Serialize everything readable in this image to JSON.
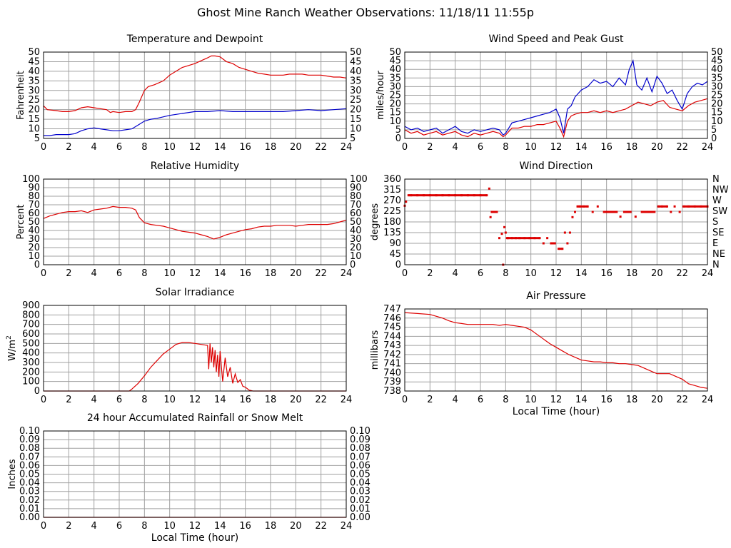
{
  "page": {
    "title": "Ghost Mine Ranch Weather Observations: 11/18/11 11:55p"
  },
  "colors": {
    "red": "#dd0000",
    "blue": "#0000cc",
    "grid": "#a0a0a0",
    "frame": "#000000"
  },
  "chart_data": [
    {
      "id": "temp",
      "type": "line",
      "title": "Temperature and Dewpoint",
      "ylabel": "Fahrenheit",
      "xlabel": "",
      "xlim": [
        0,
        24
      ],
      "ylim": [
        5,
        50
      ],
      "xticks": [
        0,
        2,
        4,
        6,
        8,
        10,
        12,
        14,
        16,
        18,
        20,
        22,
        24
      ],
      "yticks": [
        5,
        10,
        15,
        20,
        25,
        30,
        35,
        40,
        45,
        50
      ],
      "right_axis": true,
      "grid": true,
      "series": [
        {
          "color": "red",
          "style": "line",
          "x": [
            0,
            0.3,
            1,
            1.5,
            2,
            2.5,
            3,
            3.5,
            4,
            4.5,
            5,
            5.3,
            5.5,
            6,
            6.5,
            7,
            7.3,
            7.6,
            8,
            8.3,
            8.8,
            9.5,
            10,
            10.5,
            11,
            11.5,
            12,
            12.5,
            13,
            13.3,
            13.6,
            14,
            14.5,
            15,
            15.5,
            16,
            16.5,
            17,
            17.5,
            18,
            18.5,
            19,
            19.5,
            20,
            20.5,
            21,
            21.5,
            22,
            22.5,
            23,
            23.5,
            24
          ],
          "y": [
            22,
            20,
            19.5,
            19,
            19,
            19.5,
            21,
            21.5,
            21,
            20.5,
            20,
            18.5,
            19,
            18.5,
            19,
            19,
            20,
            24,
            30,
            32,
            33,
            35,
            38,
            40,
            42,
            43,
            44,
            45.5,
            47,
            48,
            48,
            47.5,
            45,
            44,
            42,
            41,
            40,
            39,
            38.5,
            38,
            38,
            38,
            38.5,
            38.5,
            38.5,
            38,
            38,
            38,
            37.5,
            37,
            37,
            36.5
          ]
        },
        {
          "color": "blue",
          "style": "line",
          "x": [
            0,
            0.5,
            1,
            1.5,
            2,
            2.5,
            3,
            3.5,
            4,
            4.5,
            5,
            5.5,
            6,
            6.5,
            7,
            7.5,
            8,
            8.5,
            9,
            10,
            11,
            12,
            13,
            14,
            15,
            16,
            17,
            18,
            19,
            20,
            21,
            22,
            23,
            24
          ],
          "y": [
            6.5,
            6.5,
            7,
            7,
            7,
            7.5,
            9,
            10,
            10.5,
            10,
            9.5,
            9,
            9,
            9.5,
            10,
            12,
            14,
            15,
            15.5,
            17,
            18,
            19,
            19,
            19.5,
            19,
            19,
            19,
            19,
            19,
            19.5,
            20,
            19.5,
            20,
            20.5
          ]
        }
      ]
    },
    {
      "id": "wind",
      "type": "line",
      "title": "Wind Speed and Peak Gust",
      "ylabel": "miles/hour",
      "xlabel": "",
      "xlim": [
        0,
        24
      ],
      "ylim": [
        0,
        50
      ],
      "xticks": [
        0,
        2,
        4,
        6,
        8,
        10,
        12,
        14,
        16,
        18,
        20,
        22,
        24
      ],
      "yticks": [
        0,
        5,
        10,
        15,
        20,
        25,
        30,
        35,
        40,
        45,
        50
      ],
      "right_axis": true,
      "grid": true,
      "series": [
        {
          "color": "blue",
          "style": "line",
          "x": [
            0,
            0.5,
            1,
            1.5,
            2,
            2.5,
            3,
            3.5,
            4,
            4.5,
            5,
            5.5,
            6,
            6.5,
            7,
            7.5,
            7.8,
            8,
            8.5,
            9,
            9.5,
            10,
            10.5,
            11,
            11.5,
            12,
            12.3,
            12.6,
            12.9,
            13.2,
            13.5,
            14,
            14.5,
            15,
            15.5,
            16,
            16.5,
            17,
            17.5,
            17.8,
            18.1,
            18.4,
            18.8,
            19.2,
            19.6,
            20,
            20.4,
            20.8,
            21.2,
            21.6,
            22,
            22.4,
            22.8,
            23.2,
            23.6,
            24
          ],
          "y": [
            7,
            5,
            6,
            4,
            5,
            6,
            3,
            5,
            7,
            4,
            3,
            5,
            4,
            5,
            6,
            5,
            2,
            3,
            9,
            10,
            11,
            12,
            13,
            14,
            15,
            17,
            12,
            3,
            17,
            19,
            24,
            28,
            30,
            34,
            32,
            33,
            30,
            35,
            31,
            40,
            45,
            31,
            28,
            35,
            27,
            36,
            32,
            26,
            28,
            22,
            17,
            26,
            30,
            32,
            31,
            33
          ]
        },
        {
          "color": "red",
          "style": "line",
          "x": [
            0,
            0.5,
            1,
            1.5,
            2,
            2.5,
            3,
            3.5,
            4,
            4.5,
            5,
            5.5,
            6,
            6.5,
            7,
            7.5,
            7.8,
            8,
            8.5,
            9,
            9.5,
            10,
            10.5,
            11,
            11.5,
            12,
            12.3,
            12.6,
            12.9,
            13.2,
            13.5,
            14,
            14.5,
            15,
            15.5,
            16,
            16.5,
            17,
            17.5,
            18,
            18.5,
            19,
            19.5,
            20,
            20.5,
            21,
            21.5,
            22,
            22.5,
            23,
            23.5,
            24
          ],
          "y": [
            5,
            3,
            4,
            2,
            3,
            4,
            2,
            3,
            4,
            2,
            1,
            3,
            2,
            3,
            4,
            3,
            1,
            2,
            6,
            6,
            7,
            7,
            8,
            8,
            9,
            10,
            6,
            1,
            10,
            13,
            14,
            15,
            15,
            16,
            15,
            16,
            15,
            16,
            17,
            19,
            21,
            20,
            19,
            21,
            22,
            18,
            17,
            16,
            19,
            21,
            22,
            23
          ]
        }
      ]
    },
    {
      "id": "humidity",
      "type": "line",
      "title": "Relative Humidity",
      "ylabel": "Percent",
      "xlabel": "",
      "xlim": [
        0,
        24
      ],
      "ylim": [
        0,
        100
      ],
      "xticks": [
        0,
        2,
        4,
        6,
        8,
        10,
        12,
        14,
        16,
        18,
        20,
        22,
        24
      ],
      "yticks": [
        0,
        10,
        20,
        30,
        40,
        50,
        60,
        70,
        80,
        90,
        100
      ],
      "right_axis": true,
      "grid": true,
      "series": [
        {
          "color": "red",
          "style": "line",
          "x": [
            0,
            0.5,
            1,
            1.5,
            2,
            2.5,
            3,
            3.5,
            4,
            4.5,
            5,
            5.5,
            6,
            6.5,
            7,
            7.3,
            7.6,
            8,
            8.5,
            9,
            9.5,
            10,
            10.5,
            11,
            11.5,
            12,
            12.5,
            13,
            13.5,
            14,
            14.5,
            15,
            15.5,
            16,
            16.5,
            17,
            17.5,
            18,
            18.5,
            19,
            19.5,
            20,
            20.5,
            21,
            21.5,
            22,
            22.5,
            23,
            23.5,
            24
          ],
          "y": [
            54,
            57,
            59,
            61,
            62,
            62,
            63,
            61,
            64,
            65,
            66,
            68,
            67,
            67,
            66,
            64,
            55,
            49,
            47,
            46,
            45,
            43,
            41,
            39,
            38,
            37,
            35,
            33,
            30,
            32,
            35,
            37,
            39,
            41,
            42,
            44,
            45,
            45,
            46,
            46,
            46,
            45,
            46,
            47,
            47,
            47,
            47,
            48,
            50,
            52
          ]
        }
      ]
    },
    {
      "id": "direction",
      "type": "scatter",
      "title": "Wind Direction",
      "ylabel": "degrees",
      "xlabel": "",
      "xlim": [
        0,
        24
      ],
      "ylim": [
        0,
        360
      ],
      "xticks": [
        0,
        2,
        4,
        6,
        8,
        10,
        12,
        14,
        16,
        18,
        20,
        22,
        24
      ],
      "yticks": [
        0,
        45,
        90,
        135,
        180,
        225,
        270,
        315,
        360
      ],
      "right_labels": [
        "N",
        "NE",
        "E",
        "SE",
        "S",
        "SW",
        "W",
        "NW",
        "N"
      ],
      "grid": true,
      "series": [
        {
          "color": "red",
          "style": "points",
          "x": [
            0,
            0.1,
            0.3,
            0.5,
            1,
            1.5,
            2,
            2.5,
            3,
            3.5,
            4,
            4.5,
            5,
            5.5,
            6,
            6.5,
            6.7,
            6.8,
            6.9,
            7.1,
            7.3,
            7.5,
            7.7,
            7.8,
            7.9,
            8.0,
            8.1,
            8.2,
            8.5,
            8.8,
            9.1,
            9.5,
            9.9,
            10.3,
            10.7,
            11.0,
            11.3,
            11.6,
            11.9,
            12.2,
            12.5,
            12.7,
            12.9,
            13.1,
            13.3,
            13.5,
            13.7,
            13.9,
            14.2,
            14.5,
            14.9,
            15.3,
            15.8,
            16.3,
            16.8,
            17.1,
            17.4,
            17.9,
            18.3,
            18.8,
            19.3,
            19.8,
            20.1,
            20.4,
            20.8,
            21.1,
            21.4,
            21.8,
            22.1,
            22.5,
            23.0,
            23.5,
            24
          ],
          "y": [
            248,
            265,
            292,
            292,
            292,
            292,
            292,
            292,
            292,
            292,
            292,
            292,
            292,
            292,
            292,
            292,
            320,
            200,
            222,
            222,
            222,
            112,
            130,
            0,
            158,
            135,
            112,
            112,
            112,
            112,
            112,
            112,
            112,
            112,
            112,
            90,
            112,
            90,
            90,
            67,
            67,
            135,
            90,
            135,
            200,
            222,
            245,
            245,
            245,
            245,
            222,
            245,
            222,
            222,
            222,
            202,
            222,
            222,
            202,
            222,
            222,
            222,
            245,
            245,
            245,
            222,
            245,
            222,
            245,
            245,
            245,
            245,
            245
          ]
        }
      ]
    },
    {
      "id": "solar",
      "type": "line",
      "title": "Solar Irradiance",
      "ylabel": "W/m",
      "ylabel_sup": "2",
      "xlabel": "",
      "xlim": [
        0,
        24
      ],
      "ylim": [
        0,
        900
      ],
      "xticks": [
        0,
        2,
        4,
        6,
        8,
        10,
        12,
        14,
        16,
        18,
        20,
        22,
        24
      ],
      "yticks": [
        0,
        100,
        200,
        300,
        400,
        500,
        600,
        700,
        800,
        900
      ],
      "right_axis": false,
      "grid": true,
      "series": [
        {
          "color": "red",
          "style": "line",
          "x": [
            0,
            6.8,
            7.0,
            7.5,
            8.0,
            8.5,
            9.0,
            9.5,
            10.0,
            10.5,
            11.0,
            11.5,
            12.0,
            12.5,
            13.0,
            13.1,
            13.2,
            13.3,
            13.4,
            13.5,
            13.6,
            13.7,
            13.8,
            13.9,
            14.0,
            14.2,
            14.4,
            14.6,
            14.8,
            15.0,
            15.2,
            15.4,
            15.6,
            15.8,
            16.0,
            16.3,
            16.6,
            24
          ],
          "y": [
            0,
            0,
            20,
            80,
            160,
            250,
            320,
            390,
            440,
            490,
            510,
            510,
            500,
            490,
            480,
            230,
            500,
            300,
            460,
            250,
            430,
            200,
            380,
            150,
            420,
            100,
            350,
            150,
            250,
            80,
            180,
            90,
            120,
            50,
            40,
            10,
            0,
            0
          ]
        }
      ]
    },
    {
      "id": "pressure",
      "type": "line",
      "title": "Air Pressure",
      "ylabel": "millibars",
      "xlabel": "Local Time (hour)",
      "xlim": [
        0,
        24
      ],
      "ylim": [
        738,
        747
      ],
      "xticks": [
        0,
        2,
        4,
        6,
        8,
        10,
        12,
        14,
        16,
        18,
        20,
        22,
        24
      ],
      "yticks": [
        738,
        739,
        740,
        741,
        742,
        743,
        744,
        745,
        746,
        747
      ],
      "right_axis": false,
      "grid": true,
      "series": [
        {
          "color": "red",
          "style": "line",
          "x": [
            0,
            1,
            2,
            3,
            3.5,
            4,
            4.5,
            5,
            5.5,
            6,
            6.5,
            7,
            7.5,
            8,
            8.5,
            9,
            9.5,
            10,
            10.5,
            11,
            11.5,
            12,
            12.5,
            13,
            13.5,
            14,
            14.5,
            15,
            15.5,
            16,
            16.5,
            17,
            17.5,
            18,
            18.5,
            19,
            19.5,
            20,
            20.5,
            21,
            21.5,
            22,
            22.5,
            23,
            23.5,
            24
          ],
          "y": [
            746.6,
            746.5,
            746.4,
            746.0,
            745.7,
            745.5,
            745.4,
            745.3,
            745.3,
            745.3,
            745.3,
            745.3,
            745.2,
            745.3,
            745.2,
            745.1,
            745.0,
            744.7,
            744.2,
            743.7,
            743.2,
            742.8,
            742.4,
            742.0,
            741.7,
            741.4,
            741.3,
            741.2,
            741.2,
            741.1,
            741.1,
            741.0,
            741.0,
            740.9,
            740.8,
            740.5,
            740.2,
            739.9,
            739.9,
            739.9,
            739.6,
            739.3,
            738.8,
            738.6,
            738.4,
            738.3
          ]
        }
      ]
    },
    {
      "id": "rain",
      "type": "line",
      "title": "24 hour Accumulated Rainfall or Snow Melt",
      "ylabel": "Inches",
      "xlabel": "Local Time (hour)",
      "xlim": [
        0,
        24
      ],
      "ylim": [
        0,
        0.1
      ],
      "xticks": [
        0,
        2,
        4,
        6,
        8,
        10,
        12,
        14,
        16,
        18,
        20,
        22,
        24
      ],
      "yticks": [
        0,
        0.01,
        0.02,
        0.03,
        0.04,
        0.05,
        0.06,
        0.07,
        0.08,
        0.09,
        0.1
      ],
      "ytick_labels": [
        "0.00",
        "0.01",
        "0.02",
        "0.03",
        "0.04",
        "0.05",
        "0.06",
        "0.07",
        "0.08",
        "0.09",
        "0.10"
      ],
      "right_axis": true,
      "grid": true,
      "series": [
        {
          "color": "red",
          "style": "line",
          "x": [
            0,
            24
          ],
          "y": [
            0,
            0
          ]
        }
      ]
    }
  ]
}
